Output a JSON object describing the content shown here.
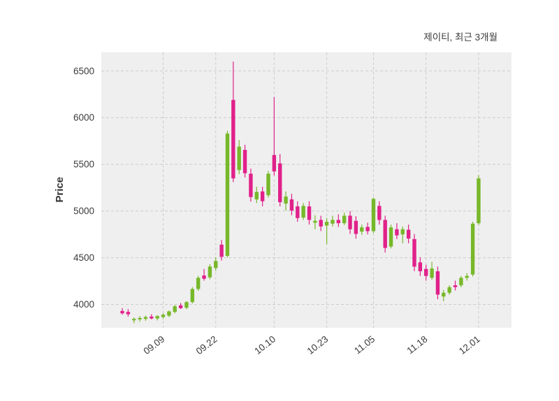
{
  "header": {
    "title": "제이티, 최근 3개월"
  },
  "chart_data": {
    "type": "candlestick",
    "title": "제이티, 최근 3개월",
    "ylabel": "Price",
    "ylim": [
      3750,
      6700
    ],
    "yticks": [
      4000,
      4500,
      5000,
      5500,
      6000,
      6500
    ],
    "xtick_indices": [
      7,
      16,
      26,
      35,
      43,
      52,
      61
    ],
    "xtick_labels": [
      "09.09",
      "09.22",
      "10.10",
      "10.23",
      "11.05",
      "11.18",
      "12.01"
    ],
    "legend": "none",
    "grid": "dashed",
    "colors": {
      "up": "#77b82a",
      "down": "#e0218a",
      "plot_bg": "#efefef",
      "grid": "#c9c9c9",
      "text": "#3b3b3b"
    },
    "candles_format": [
      "open",
      "high",
      "low",
      "close"
    ],
    "candles": [
      [
        3930,
        3960,
        3890,
        3905
      ],
      [
        3920,
        3950,
        3870,
        3895
      ],
      [
        3830,
        3860,
        3800,
        3845
      ],
      [
        3840,
        3875,
        3815,
        3855
      ],
      [
        3845,
        3880,
        3825,
        3865
      ],
      [
        3870,
        3895,
        3840,
        3850
      ],
      [
        3850,
        3885,
        3830,
        3875
      ],
      [
        3865,
        3905,
        3845,
        3890
      ],
      [
        3880,
        3935,
        3865,
        3925
      ],
      [
        3920,
        3995,
        3905,
        3980
      ],
      [
        3990,
        4015,
        3950,
        3960
      ],
      [
        3965,
        4035,
        3950,
        4025
      ],
      [
        4025,
        4185,
        4010,
        4165
      ],
      [
        4165,
        4305,
        4145,
        4285
      ],
      [
        4310,
        4380,
        4255,
        4275
      ],
      [
        4290,
        4430,
        4270,
        4405
      ],
      [
        4390,
        4505,
        4360,
        4465
      ],
      [
        4640,
        4690,
        4470,
        4510
      ],
      [
        4520,
        5860,
        4505,
        5830
      ],
      [
        6190,
        6600,
        5310,
        5350
      ],
      [
        5440,
        5760,
        5395,
        5690
      ],
      [
        5655,
        5710,
        5360,
        5405
      ],
      [
        5400,
        5455,
        5100,
        5150
      ],
      [
        5125,
        5260,
        5085,
        5205
      ],
      [
        5210,
        5260,
        5050,
        5105
      ],
      [
        5170,
        5430,
        5145,
        5400
      ],
      [
        5600,
        6220,
        5380,
        5425
      ],
      [
        5510,
        5610,
        5050,
        5095
      ],
      [
        5080,
        5210,
        5005,
        5155
      ],
      [
        5125,
        5185,
        4955,
        5005
      ],
      [
        5050,
        5105,
        4885,
        4925
      ],
      [
        4930,
        5085,
        4905,
        5055
      ],
      [
        5050,
        5105,
        4855,
        4905
      ],
      [
        4875,
        4955,
        4805,
        4895
      ],
      [
        4905,
        4950,
        4785,
        4835
      ],
      [
        4845,
        4925,
        4645,
        4885
      ],
      [
        4865,
        4950,
        4835,
        4905
      ],
      [
        4905,
        4965,
        4830,
        4870
      ],
      [
        4870,
        4985,
        4850,
        4950
      ],
      [
        4950,
        5000,
        4755,
        4805
      ],
      [
        4895,
        4945,
        4705,
        4755
      ],
      [
        4780,
        4855,
        4745,
        4825
      ],
      [
        4830,
        4875,
        4750,
        4785
      ],
      [
        4785,
        5145,
        4765,
        5130
      ],
      [
        5055,
        5105,
        4855,
        4905
      ],
      [
        4905,
        4950,
        4555,
        4605
      ],
      [
        4620,
        4855,
        4600,
        4825
      ],
      [
        4805,
        4870,
        4700,
        4740
      ],
      [
        4750,
        4835,
        4655,
        4805
      ],
      [
        4800,
        4855,
        4655,
        4705
      ],
      [
        4700,
        4755,
        4355,
        4405
      ],
      [
        4450,
        4505,
        4305,
        4355
      ],
      [
        4380,
        4425,
        4255,
        4305
      ],
      [
        4285,
        4455,
        4265,
        4385
      ],
      [
        4355,
        4405,
        4055,
        4105
      ],
      [
        4085,
        4155,
        4035,
        4125
      ],
      [
        4125,
        4205,
        4105,
        4185
      ],
      [
        4205,
        4255,
        4150,
        4185
      ],
      [
        4205,
        4305,
        4185,
        4285
      ],
      [
        4285,
        4335,
        4255,
        4305
      ],
      [
        4320,
        4885,
        4300,
        4865
      ],
      [
        4870,
        5385,
        4850,
        5350
      ]
    ]
  }
}
